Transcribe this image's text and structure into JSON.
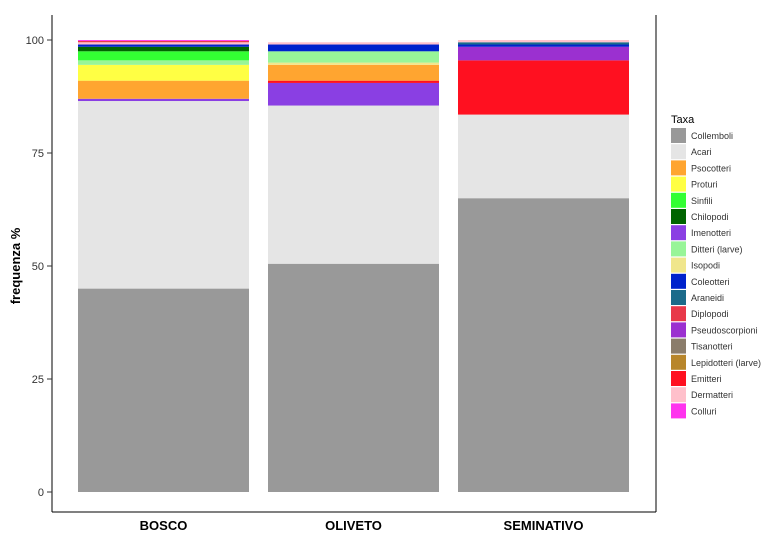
{
  "chart_data": {
    "type": "bar",
    "stacked": true,
    "ylabel": "frequenza %",
    "xlabel": "",
    "ylim": [
      0,
      100
    ],
    "yticks": [
      0,
      25,
      50,
      75,
      100
    ],
    "yticklabels": [
      "0",
      "25",
      "50",
      "75",
      "100"
    ],
    "categories": [
      "BOSCO",
      "OLIVETO",
      "SEMINATIVO"
    ],
    "legend": {
      "title": "Taxa",
      "position": "right"
    },
    "grid": false,
    "series": [
      {
        "name": "Collemboli",
        "color": "#999999",
        "values": [
          45.0,
          50.5,
          65.0
        ]
      },
      {
        "name": "Acari",
        "color": "#E5E5E5",
        "values": [
          41.5,
          35.0,
          18.5
        ]
      },
      {
        "name": "Imenotteri",
        "color": "#8A3FE3",
        "values": [
          0.5,
          5.0,
          0.0
        ]
      },
      {
        "name": "Emitteri",
        "color": "#FF1020",
        "values": [
          0.0,
          0.5,
          12.0
        ]
      },
      {
        "name": "Psocotteri",
        "color": "#FFA530",
        "values": [
          4.0,
          3.5,
          0.0
        ]
      },
      {
        "name": "Proturi",
        "color": "#FFFF44",
        "values": [
          3.5,
          0.0,
          0.0
        ]
      },
      {
        "name": "Isopodi",
        "color": "#F0E68C",
        "values": [
          0.0,
          0.5,
          0.0
        ]
      },
      {
        "name": "Ditteri (larve)",
        "color": "#98F598",
        "values": [
          1.0,
          2.5,
          0.0
        ]
      },
      {
        "name": "Pseudoscorpioni",
        "color": "#9B30D0",
        "values": [
          0.0,
          0.0,
          3.0
        ]
      },
      {
        "name": "Sinfili",
        "color": "#33FF33",
        "values": [
          2.0,
          0.0,
          0.0
        ]
      },
      {
        "name": "Chilopodi",
        "color": "#006400",
        "values": [
          1.0,
          0.0,
          0.0
        ]
      },
      {
        "name": "Coleotteri",
        "color": "#0022CC",
        "values": [
          0.5,
          1.5,
          0.5
        ]
      },
      {
        "name": "Araneidi",
        "color": "#1B6B8A",
        "values": [
          0.0,
          0.0,
          0.5
        ]
      },
      {
        "name": "Dermatteri",
        "color": "#FFC0CB",
        "values": [
          0.5,
          0.5,
          0.5
        ]
      },
      {
        "name": "Diplopodi",
        "color": "#E8394A",
        "values": [
          0.3,
          0.0,
          0.0
        ]
      },
      {
        "name": "Colluri",
        "color": "#FF33EE",
        "values": [
          0.2,
          0.0,
          0.0
        ]
      }
    ],
    "legend_order": [
      "Collemboli",
      "Acari",
      "Psocotteri",
      "Proturi",
      "Sinfili",
      "Chilopodi",
      "Imenotteri",
      "Ditteri (larve)",
      "Isopodi",
      "Coleotteri",
      "Araneidi",
      "Diplopodi",
      "Pseudoscorpioni",
      "Tisanotteri",
      "Lepidotteri (larve)",
      "Emitteri",
      "Dermatteri",
      "Colluri"
    ],
    "legend_colors": {
      "Collemboli": "#999999",
      "Acari": "#E5E5E5",
      "Psocotteri": "#FFA530",
      "Proturi": "#FFFF44",
      "Sinfili": "#33FF33",
      "Chilopodi": "#006400",
      "Imenotteri": "#8A3FE3",
      "Ditteri (larve)": "#98F598",
      "Isopodi": "#F0E68C",
      "Coleotteri": "#0022CC",
      "Araneidi": "#1B6B8A",
      "Diplopodi": "#E8394A",
      "Pseudoscorpioni": "#9B30D0",
      "Tisanotteri": "#8B7D6B",
      "Lepidotteri (larve)": "#B8862B",
      "Emitteri": "#FF1020",
      "Dermatteri": "#FFC0CB",
      "Colluri": "#FF33EE"
    }
  }
}
